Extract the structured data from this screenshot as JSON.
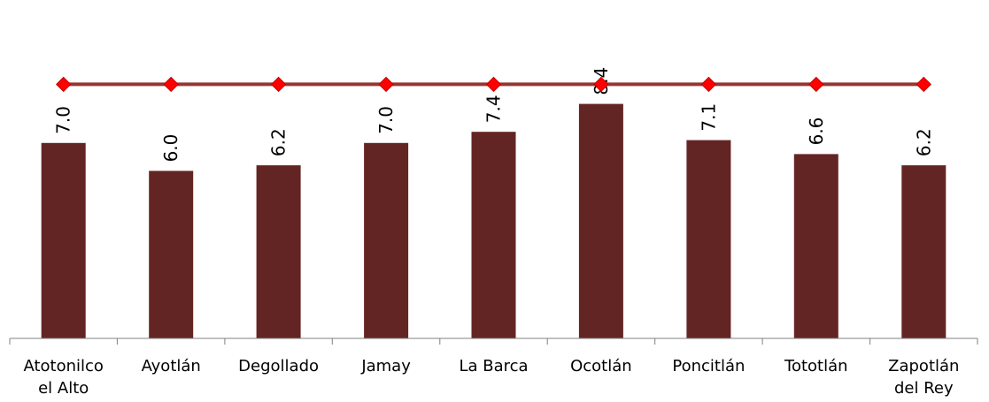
{
  "chart_data": {
    "type": "bar",
    "categories": [
      [
        "Atotonilco",
        "el Alto"
      ],
      [
        "Ayotlán"
      ],
      [
        "Degollado"
      ],
      [
        "Jamay"
      ],
      [
        "La Barca"
      ],
      [
        "Ocotlán"
      ],
      [
        "Poncitlán"
      ],
      [
        "Tototlán"
      ],
      [
        "Zapotlán",
        "del Rey"
      ]
    ],
    "series": [
      {
        "values": [
          7.0,
          6.0,
          6.2,
          7.0,
          7.4,
          8.4,
          7.1,
          6.6,
          6.2
        ],
        "labels": [
          "7.0",
          "6.0",
          "6.2",
          "7.0",
          "7.4",
          "8.4",
          "7.1",
          "6.6",
          "6.2"
        ],
        "color": "#632523"
      },
      {
        "type": "line",
        "values": [
          9.1,
          9.1,
          9.1,
          9.1,
          9.1,
          9.1,
          9.1,
          9.1,
          9.1
        ],
        "color": "#963634",
        "marker_color": "#ff0000"
      }
    ],
    "ylim": [
      0,
      10
    ],
    "grid": false,
    "legend": "none"
  }
}
